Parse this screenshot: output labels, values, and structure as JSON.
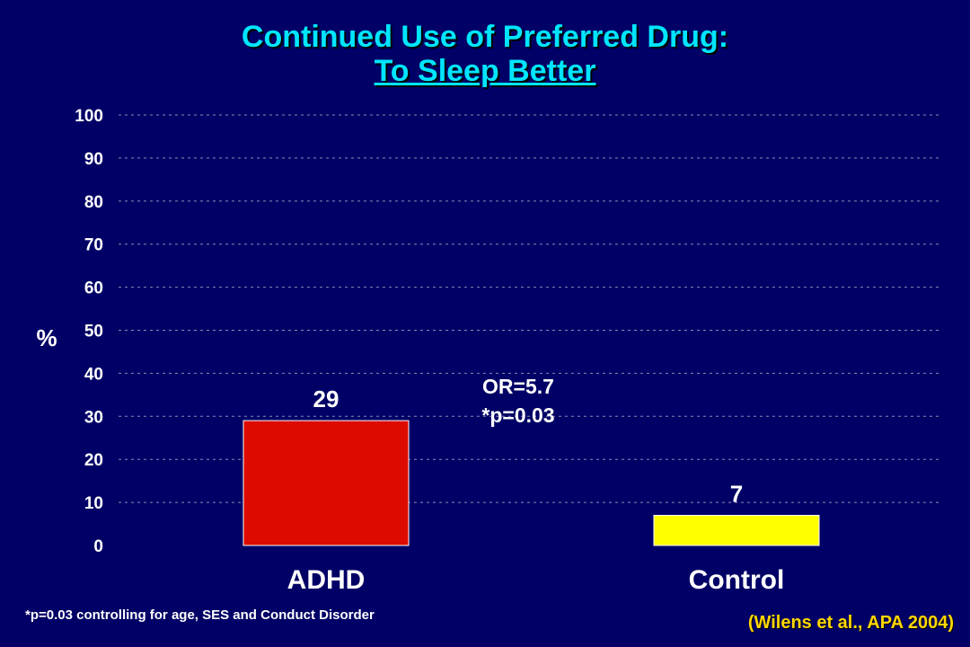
{
  "title": "Continued Use of Preferred Drug:",
  "subtitle": "To Sleep Better",
  "footnote": "*p=0.03 controlling for age, SES and Conduct Disorder",
  "citation": "(Wilens et al., APA 2004)",
  "colors": {
    "background": "#000066",
    "title": "#00e5ff",
    "adhd_bar": "#dd0a00",
    "control_bar": "#ffff00",
    "text": "#ffffff",
    "citation": "#ffd700"
  },
  "chart_data": {
    "type": "bar",
    "categories": [
      "ADHD",
      "Control"
    ],
    "values": [
      29,
      7
    ],
    "value_labels": [
      "29",
      "7"
    ],
    "bar_colors": [
      "#dd0a00",
      "#ffff00"
    ],
    "ylabel": "%",
    "xlabel": "",
    "ylim": [
      0,
      100
    ],
    "yticks": [
      0,
      10,
      20,
      30,
      40,
      50,
      60,
      70,
      80,
      90,
      100
    ],
    "grid": true,
    "annotation": [
      "OR=5.7",
      "*p=0.03"
    ]
  }
}
